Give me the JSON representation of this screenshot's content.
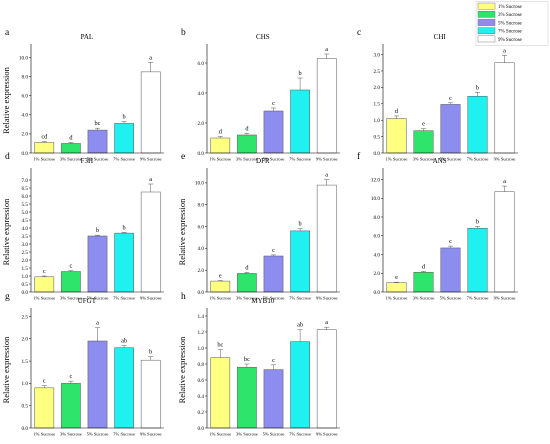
{
  "colors": {
    "1% Sucrose": "#ffff80",
    "3% Sucrose": "#2ee46b",
    "5% Sucrose": "#8d8df0",
    "7% Sucrose": "#1ff0f0",
    "9% Sucrose": "#ffffff"
  },
  "legend": [
    "1% Sucrose",
    "3% Sucrose",
    "5% Sucrose",
    "7% Sucrose",
    "9% Sucrose"
  ],
  "chart_data": [
    {
      "type": "bar",
      "panel": "a",
      "title": "PAL",
      "ylabel": "Relative expression",
      "categories": [
        "1% Sucrose",
        "3% Sucrose",
        "5% Sucrose",
        "7% Sucrose",
        "9% Sucrose"
      ],
      "values": [
        1.1,
        1.0,
        2.4,
        3.1,
        8.5
      ],
      "errors": [
        0.1,
        0.1,
        0.2,
        0.2,
        1.0
      ],
      "significance": [
        "cd",
        "d",
        "bc",
        "b",
        "a"
      ],
      "yticks": [
        "0.0",
        "2.0",
        "4.0",
        "6.0",
        "8.0",
        "10.0"
      ],
      "ylim": [
        0,
        11
      ]
    },
    {
      "type": "bar",
      "panel": "b",
      "title": "CHS",
      "ylabel": "",
      "categories": [
        "1% Sucrose",
        "3% Sucrose",
        "5% Sucrose",
        "7% Sucrose",
        "9% Sucrose"
      ],
      "values": [
        1.0,
        1.2,
        2.8,
        4.2,
        6.3
      ],
      "errors": [
        0.1,
        0.1,
        0.2,
        0.8,
        0.3
      ],
      "significance": [
        "d",
        "d",
        "c",
        "b",
        "a"
      ],
      "yticks": [
        "0.0",
        "2.0",
        "4.0",
        "6.0"
      ],
      "ylim": [
        0,
        7
      ]
    },
    {
      "type": "bar",
      "panel": "c",
      "title": "CHI",
      "ylabel": "",
      "categories": [
        "1% Sucrose",
        "3% Sucrose",
        "5% Sucrose",
        "7% Sucrose",
        "9% Sucrose"
      ],
      "values": [
        1.05,
        0.68,
        1.48,
        1.73,
        2.75
      ],
      "errors": [
        0.08,
        0.06,
        0.05,
        0.12,
        0.22
      ],
      "significance": [
        "d",
        "e",
        "c",
        "b",
        "a"
      ],
      "yticks": [
        "0.0",
        "0.5",
        "1.0",
        "1.5",
        "2.0",
        "2.5",
        "3.0"
      ],
      "ylim": [
        0,
        3.2
      ]
    },
    {
      "type": "bar",
      "panel": "d",
      "title": "F3H",
      "ylabel": "Relative expression",
      "categories": [
        "1% Sucrose",
        "3% Sucrose",
        "5% Sucrose",
        "7% Sucrose",
        "9% Sucrose"
      ],
      "values": [
        0.95,
        1.28,
        3.5,
        3.68,
        6.25
      ],
      "errors": [
        0.05,
        0.05,
        0.05,
        0.05,
        0.5
      ],
      "significance": [
        "c",
        "c",
        "b",
        "b",
        "a"
      ],
      "yticks": [
        "0.0",
        "0.5",
        "1.0",
        "1.5",
        "2.0",
        "2.5",
        "3.0",
        "3.5",
        "4.0",
        "4.5",
        "5.0",
        "5.5",
        "6.0",
        "6.5",
        "7.0"
      ],
      "ylim": [
        0,
        7.5
      ]
    },
    {
      "type": "bar",
      "panel": "e",
      "title": "DFR",
      "ylabel": "Relative expression",
      "categories": [
        "1% Sucrose",
        "3% Sucrose",
        "5% Sucrose",
        "7% Sucrose",
        "9% Sucrose"
      ],
      "values": [
        1.0,
        1.7,
        3.3,
        5.6,
        9.8
      ],
      "errors": [
        0.05,
        0.1,
        0.1,
        0.2,
        0.5
      ],
      "significance": [
        "e",
        "d",
        "c",
        "b",
        "a"
      ],
      "yticks": [
        "0.0",
        "2.0",
        "4.0",
        "6.0",
        "8.0",
        "10.0"
      ],
      "ylim": [
        0,
        11
      ]
    },
    {
      "type": "bar",
      "panel": "f",
      "title": "ANS",
      "ylabel": "",
      "categories": [
        "1% Sucrose",
        "3% Sucrose",
        "5% Sucrose",
        "7% Sucrose",
        "9% Sucrose"
      ],
      "values": [
        1.0,
        2.1,
        4.7,
        6.8,
        10.7
      ],
      "errors": [
        0.05,
        0.1,
        0.2,
        0.2,
        0.6
      ],
      "significance": [
        "e",
        "d",
        "c",
        "b",
        "a"
      ],
      "yticks": [
        "0.0",
        "2.0",
        "4.0",
        "6.0",
        "8.0",
        "10.0",
        "12.0"
      ],
      "ylim": [
        0,
        12.8
      ]
    },
    {
      "type": "bar",
      "panel": "g",
      "title": "UFGT",
      "ylabel": "Relative expression",
      "categories": [
        "1% Sucrose",
        "3% Sucrose",
        "5% Sucrose",
        "7% Sucrose",
        "9% Sucrose"
      ],
      "values": [
        0.9,
        1.0,
        1.95,
        1.8,
        1.52
      ],
      "errors": [
        0.05,
        0.05,
        0.3,
        0.05,
        0.08
      ],
      "significance": [
        "c",
        "c",
        "a",
        "ab",
        "b"
      ],
      "yticks": [
        "0.0",
        "0.5",
        "1.0",
        "1.5",
        "2.0",
        "2.5"
      ],
      "ylim": [
        0,
        2.6
      ]
    },
    {
      "type": "bar",
      "panel": "h",
      "title": "MYB10",
      "ylabel": "Relative expression",
      "categories": [
        "1% Sucrose",
        "3% Sucrose",
        "5% Sucrose",
        "7% Sucrose",
        "9% Sucrose"
      ],
      "values": [
        0.88,
        0.76,
        0.73,
        1.08,
        1.23
      ],
      "errors": [
        0.1,
        0.04,
        0.06,
        0.15,
        0.03
      ],
      "significance": [
        "bc",
        "bc",
        "c",
        "ab",
        "a"
      ],
      "yticks": [
        "0.0",
        "0.2",
        "0.4",
        "0.6",
        "0.8",
        "1.0",
        "1.2",
        "1.4"
      ],
      "ylim": [
        0,
        1.45
      ]
    }
  ]
}
